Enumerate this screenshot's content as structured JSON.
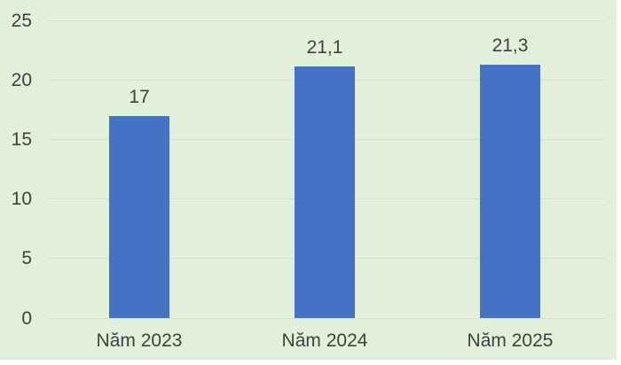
{
  "chart_data": {
    "type": "bar",
    "title": "",
    "xlabel": "",
    "ylabel": "",
    "categories": [
      "Năm 2023",
      "Năm 2024",
      "Năm 2025"
    ],
    "values": [
      17,
      21.1,
      21.3
    ],
    "value_labels": [
      "17",
      "21,1",
      "21,3"
    ],
    "ylim": [
      0,
      25
    ],
    "yticks": [
      0,
      5,
      10,
      15,
      20,
      25
    ],
    "ytick_labels": [
      "0",
      "5",
      "10",
      "15",
      "20",
      "25"
    ],
    "grid": true,
    "legend": false,
    "colors": {
      "bar": "#4472C4",
      "plot_background": "#E2EFDA",
      "gridline": "#D9D9D9",
      "label_text": "#404040",
      "page_background": "#FFFFFF"
    }
  }
}
